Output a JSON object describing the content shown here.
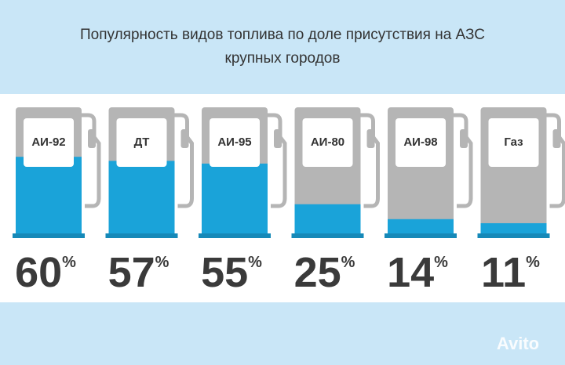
{
  "chart_data": {
    "type": "pump",
    "title": "Популярность видов топлива по доле присутствия на АЗС крупных городов",
    "categories": [
      "АИ-92",
      "ДТ",
      "АИ-95",
      "АИ-80",
      "АИ-98",
      "Газ"
    ],
    "values": [
      60,
      57,
      55,
      25,
      14,
      11
    ],
    "value_labels": [
      "60%",
      "57%",
      "55%",
      "25%",
      "14%",
      "11%"
    ],
    "color": "#1aa3d9"
  },
  "watermark": "Avito"
}
